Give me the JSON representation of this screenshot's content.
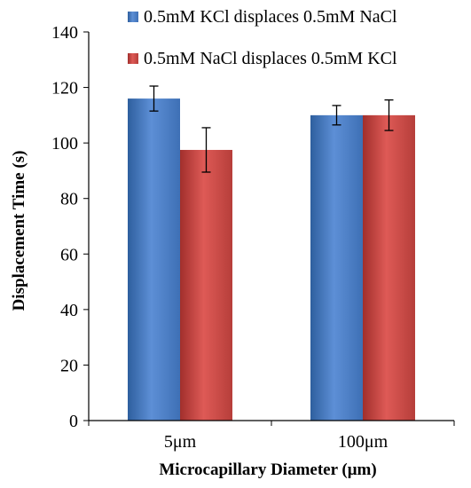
{
  "chart_data": {
    "type": "bar",
    "title": "",
    "xlabel": "Microcapillary Diameter (μm)",
    "ylabel": "Displacement Time (s)",
    "categories": [
      "5μm",
      "100μm"
    ],
    "ylim": [
      0,
      140
    ],
    "yticks": [
      "0",
      "20",
      "40",
      "60",
      "80",
      "100",
      "120",
      "140"
    ],
    "grid": false,
    "legend_position": "top-right",
    "series": [
      {
        "name": "0.5mM KCl displaces 0.5mM NaCl",
        "color": "#4F81BD",
        "values": [
          116,
          110
        ],
        "error": [
          4.5,
          3.5
        ]
      },
      {
        "name": "0.5mM NaCl displaces 0.5mM KCl",
        "color": "#C0504D",
        "values": [
          97.5,
          110
        ],
        "error": [
          8,
          5.5
        ]
      }
    ]
  }
}
